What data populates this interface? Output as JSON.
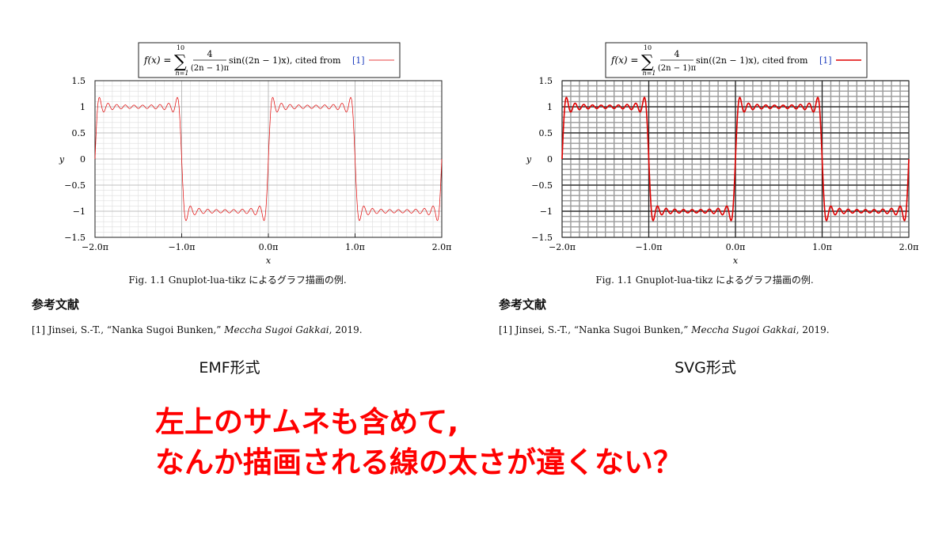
{
  "figures": [
    {
      "id": "left",
      "format_label": "EMF形式",
      "legend": {
        "formula_lhs": "f(x) =",
        "sum_upper": "10",
        "sum_lower": "n=1",
        "frac_num": "4",
        "frac_den": "(2n − 1)π",
        "formula_tail": "sin((2n − 1)x), cited from",
        "cite": "[1]"
      },
      "caption": "Fig. 1.1   Gnuplot-lua-tikz によるグラフ描画の例.",
      "grid_style": "fine-light",
      "line_style": "thin",
      "line_color": "#e00000"
    },
    {
      "id": "right",
      "format_label": "SVG形式",
      "legend": {
        "formula_lhs": "f(x) =",
        "sum_upper": "10",
        "sum_lower": "n=1",
        "frac_num": "4",
        "frac_den": "(2n − 1)π",
        "formula_tail": "sin((2n − 1)x), cited from",
        "cite": "[1]"
      },
      "caption": "Fig. 1.1   Gnuplot-lua-tikz によるグラフ描画の例.",
      "grid_style": "heavy-dark",
      "line_style": "thick",
      "line_color": "#e00000"
    }
  ],
  "references": {
    "heading": "参考文献",
    "item_prefix": "[1]  Jinsei, S.-T., “Nanka Sugoi Bunken,” ",
    "item_venue": "Meccha Sugoi Gakkai",
    "item_suffix": ", 2019."
  },
  "comment": {
    "line1": "左上のサムネも含めて,",
    "line2": "なんか描画される線の太さが違くない？"
  },
  "colors": {
    "accent": "#ff0000",
    "cite": "#1f3fbf"
  },
  "chart_data": [
    {
      "type": "line",
      "xlabel": "x",
      "ylabel": "y",
      "xlim": [
        -2.0,
        2.0
      ],
      "ylim": [
        -1.5,
        1.5
      ],
      "x_unit": "π",
      "x_ticks": [
        "−2.0π",
        "−1.0π",
        "0.0π",
        "1.0π",
        "2.0π"
      ],
      "y_ticks": [
        "1.5",
        "1",
        "0.5",
        "0",
        "−0.5",
        "−1",
        "−1.5"
      ],
      "grid": true,
      "series": [
        {
          "function": "sum_{n=1}^{10} 4/((2n-1)π) · sin((2n-1)x)",
          "terms": 10
        }
      ]
    },
    {
      "type": "line",
      "xlabel": "x",
      "ylabel": "y",
      "xlim": [
        -2.0,
        2.0
      ],
      "ylim": [
        -1.5,
        1.5
      ],
      "x_unit": "π",
      "x_ticks": [
        "−2.0π",
        "−1.0π",
        "0.0π",
        "1.0π",
        "2.0π"
      ],
      "y_ticks": [
        "1.5",
        "1",
        "0.5",
        "0",
        "−0.5",
        "−1",
        "−1.5"
      ],
      "grid": true,
      "series": [
        {
          "function": "sum_{n=1}^{10} 4/((2n-1)π) · sin((2n-1)x)",
          "terms": 10
        }
      ]
    }
  ]
}
